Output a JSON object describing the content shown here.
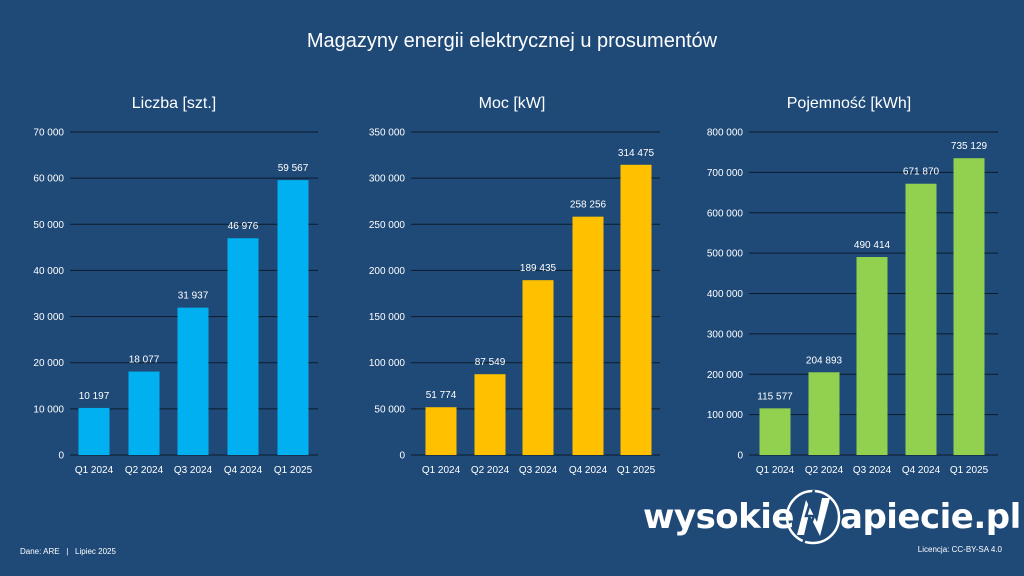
{
  "title": "Magazyny energii elektrycznej u prosumentów",
  "footer": {
    "source": "Dane: ARE   |   Lipiec 2025",
    "license": "Licencja: CC-BY-SA 4.0"
  },
  "logo": {
    "text_left": "wysokie",
    "text_right": "apiecie.pl",
    "icon": "lightning-n-logo-icon"
  },
  "colors": {
    "background": "#1f4a78",
    "count": "#00b0f0",
    "power": "#ffc000",
    "capacity": "#92d050"
  },
  "chart_data": [
    {
      "type": "bar",
      "title": "Liczba [szt.]",
      "categories": [
        "Q1 2024",
        "Q2 2024",
        "Q3 2024",
        "Q4 2024",
        "Q1 2025"
      ],
      "values": [
        10197,
        18077,
        31937,
        46976,
        59567
      ],
      "value_labels": [
        "10 197",
        "18 077",
        "31 937",
        "46 976",
        "59 567"
      ],
      "ylim": [
        0,
        70000
      ],
      "yticks": [
        0,
        10000,
        20000,
        30000,
        40000,
        50000,
        60000,
        70000
      ],
      "ytick_labels": [
        "0",
        "10 000",
        "20 000",
        "30 000",
        "40 000",
        "50 000",
        "60 000",
        "70 000"
      ],
      "grid": true,
      "color": "#00b0f0"
    },
    {
      "type": "bar",
      "title": "Moc [kW]",
      "categories": [
        "Q1 2024",
        "Q2 2024",
        "Q3 2024",
        "Q4 2024",
        "Q1 2025"
      ],
      "values": [
        51774,
        87549,
        189435,
        258256,
        314475
      ],
      "value_labels": [
        "51 774",
        "87 549",
        "189 435",
        "258 256",
        "314 475"
      ],
      "ylim": [
        0,
        350000
      ],
      "yticks": [
        0,
        50000,
        100000,
        150000,
        200000,
        250000,
        300000,
        350000
      ],
      "ytick_labels": [
        "0",
        "50 000",
        "100 000",
        "150 000",
        "200 000",
        "250 000",
        "300 000",
        "350 000"
      ],
      "grid": true,
      "color": "#ffc000"
    },
    {
      "type": "bar",
      "title": "Pojemność [kWh]",
      "categories": [
        "Q1 2024",
        "Q2 2024",
        "Q3 2024",
        "Q4 2024",
        "Q1 2025"
      ],
      "values": [
        115577,
        204893,
        490414,
        671870,
        735129
      ],
      "value_labels": [
        "115 577",
        "204 893",
        "490 414",
        "671 870",
        "735 129"
      ],
      "ylim": [
        0,
        800000
      ],
      "yticks": [
        0,
        100000,
        200000,
        300000,
        400000,
        500000,
        600000,
        700000,
        800000
      ],
      "ytick_labels": [
        "0",
        "100 000",
        "200 000",
        "300 000",
        "400 000",
        "500 000",
        "600 000",
        "700 000",
        "800 000"
      ],
      "grid": true,
      "color": "#92d050"
    }
  ]
}
